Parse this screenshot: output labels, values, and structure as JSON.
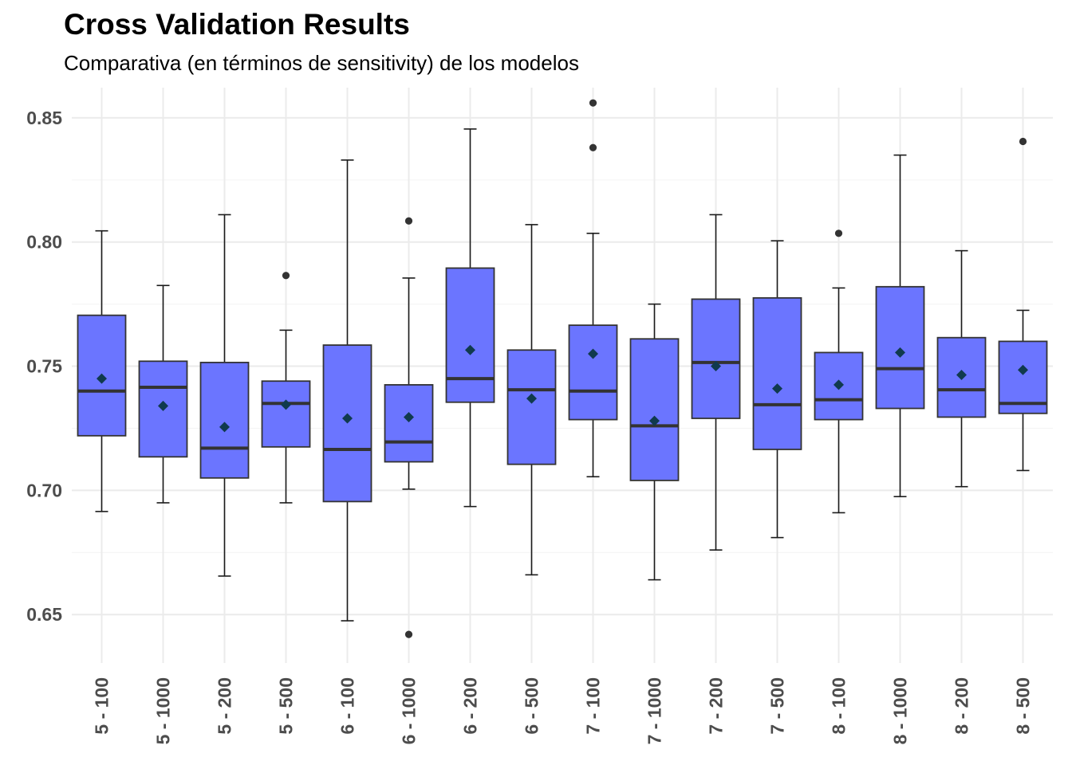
{
  "chart_data": {
    "type": "box",
    "title": "Cross Validation Results",
    "subtitle": "Comparativa (en términos de sensitivity) de los modelos",
    "xlabel": "",
    "ylabel": "",
    "ylim": [
      0.6305,
      0.866
    ],
    "yticks": [
      0.65,
      0.7,
      0.75,
      0.8,
      0.85
    ],
    "ytick_labels": [
      "0.65",
      "0.70",
      "0.75",
      "0.80",
      "0.85"
    ],
    "grid": true,
    "legend": "none",
    "categories": [
      "5 - 100",
      "5 - 1000",
      "5 - 200",
      "5 - 500",
      "6 - 100",
      "6 - 1000",
      "6 - 200",
      "6 - 500",
      "7 - 100",
      "7 - 1000",
      "7 - 200",
      "7 - 500",
      "8 - 100",
      "8 - 1000",
      "8 - 200",
      "8 - 500"
    ],
    "boxes": [
      {
        "whisker_low": 0.6915,
        "q1": 0.722,
        "median": 0.74,
        "q3": 0.7705,
        "whisker_high": 0.8045,
        "mean": 0.745,
        "outliers": []
      },
      {
        "whisker_low": 0.695,
        "q1": 0.7135,
        "median": 0.7415,
        "q3": 0.752,
        "whisker_high": 0.7825,
        "mean": 0.734,
        "outliers": []
      },
      {
        "whisker_low": 0.6655,
        "q1": 0.705,
        "median": 0.717,
        "q3": 0.7515,
        "whisker_high": 0.811,
        "mean": 0.7255,
        "outliers": []
      },
      {
        "whisker_low": 0.695,
        "q1": 0.7175,
        "median": 0.735,
        "q3": 0.744,
        "whisker_high": 0.7645,
        "mean": 0.7345,
        "outliers": [
          0.7865
        ]
      },
      {
        "whisker_low": 0.6475,
        "q1": 0.6955,
        "median": 0.7165,
        "q3": 0.7585,
        "whisker_high": 0.833,
        "mean": 0.729,
        "outliers": []
      },
      {
        "whisker_low": 0.7005,
        "q1": 0.7115,
        "median": 0.7195,
        "q3": 0.7425,
        "whisker_high": 0.7855,
        "mean": 0.7295,
        "outliers": [
          0.8085,
          0.642
        ]
      },
      {
        "whisker_low": 0.6935,
        "q1": 0.7355,
        "median": 0.745,
        "q3": 0.7895,
        "whisker_high": 0.8455,
        "mean": 0.7565,
        "outliers": []
      },
      {
        "whisker_low": 0.666,
        "q1": 0.7105,
        "median": 0.7405,
        "q3": 0.7565,
        "whisker_high": 0.807,
        "mean": 0.737,
        "outliers": []
      },
      {
        "whisker_low": 0.7055,
        "q1": 0.7285,
        "median": 0.74,
        "q3": 0.7665,
        "whisker_high": 0.8035,
        "mean": 0.755,
        "outliers": [
          0.856,
          0.838
        ]
      },
      {
        "whisker_low": 0.664,
        "q1": 0.704,
        "median": 0.726,
        "q3": 0.761,
        "whisker_high": 0.775,
        "mean": 0.728,
        "outliers": []
      },
      {
        "whisker_low": 0.676,
        "q1": 0.729,
        "median": 0.7515,
        "q3": 0.777,
        "whisker_high": 0.811,
        "mean": 0.75,
        "outliers": []
      },
      {
        "whisker_low": 0.681,
        "q1": 0.7165,
        "median": 0.7345,
        "q3": 0.7775,
        "whisker_high": 0.8005,
        "mean": 0.741,
        "outliers": []
      },
      {
        "whisker_low": 0.691,
        "q1": 0.7285,
        "median": 0.7365,
        "q3": 0.7555,
        "whisker_high": 0.7815,
        "mean": 0.7425,
        "outliers": [
          0.8035
        ]
      },
      {
        "whisker_low": 0.6975,
        "q1": 0.733,
        "median": 0.749,
        "q3": 0.782,
        "whisker_high": 0.835,
        "mean": 0.7555,
        "outliers": []
      },
      {
        "whisker_low": 0.7015,
        "q1": 0.7295,
        "median": 0.7405,
        "q3": 0.7615,
        "whisker_high": 0.7965,
        "mean": 0.7465,
        "outliers": []
      },
      {
        "whisker_low": 0.708,
        "q1": 0.731,
        "median": 0.735,
        "q3": 0.76,
        "whisker_high": 0.7725,
        "mean": 0.7485,
        "outliers": [
          0.8405
        ]
      }
    ],
    "colors": {
      "box_fill": "#6b75ff",
      "box_border": "#333333",
      "median_line": "#333333",
      "whisker": "#1a1a1a",
      "outlier": "#333333",
      "mean_marker": "#103a4e",
      "grid_major": "#ebebeb",
      "grid_minor": "#f5f5f5",
      "tick_label": "#4d4d4d"
    }
  }
}
